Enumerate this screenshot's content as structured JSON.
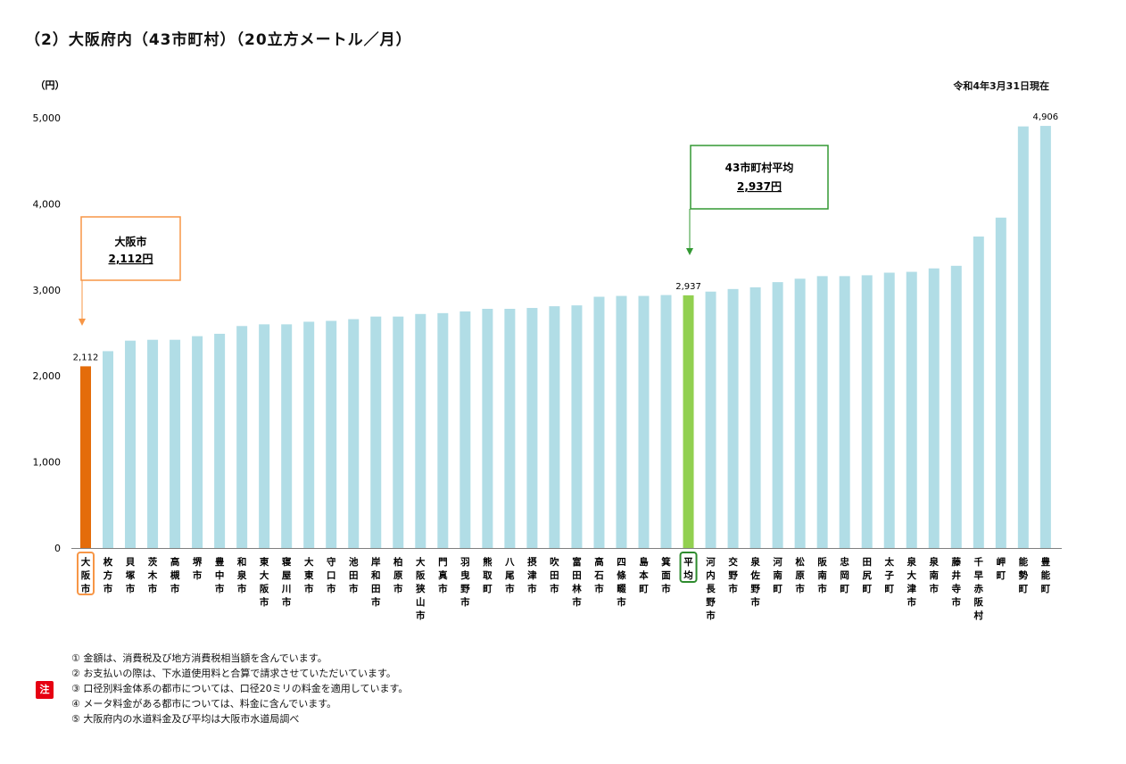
{
  "title": "（2）大阪府内（43市町村）（20立方メートル／月）",
  "as_of": "令和4年3月31日現在",
  "notes_badge": "注",
  "notes": [
    "① 金額は、消費税及び地方消費税相当額を含んでいます。",
    "② お支払いの際は、下水道使用料と合算で請求させていただいています。",
    "③ 口径別料金体系の都市については、口径20ミリの料金を適用しています。",
    "④ メータ料金がある都市については、料金に含んでいます。",
    "⑤ 大阪府内の水道料金及び平均は大阪市水道局調べ"
  ],
  "callouts": {
    "osaka": {
      "line1": "大阪市",
      "line2": "2,112円"
    },
    "average": {
      "line1": "43市町村平均",
      "line2": "2,937円"
    }
  },
  "colors": {
    "bar": "#b1dde6",
    "osaka": "#e46c0a",
    "average": "#92d050",
    "osaka_box": "#f79646",
    "average_box": "#339933",
    "average_label_box": "#2e8b2e",
    "axis": "#7f7f7f",
    "badge": "#e60012"
  },
  "chart_data": {
    "type": "bar",
    "ylabel": "（円）",
    "ylim": [
      0,
      5000
    ],
    "yticks": [
      "0",
      "1,000",
      "2,000",
      "3,000",
      "4,000",
      "5,000"
    ],
    "grid": false,
    "categories": [
      "大阪市",
      "枚方市",
      "貝塚市",
      "茨木市",
      "高槻市",
      "堺市",
      "豊中市",
      "和泉市",
      "東大阪市",
      "寝屋川市",
      "大東市",
      "守口市",
      "池田市",
      "岸和田市",
      "柏原市",
      "大阪狭山市",
      "門真市",
      "羽曳野市",
      "熊取町",
      "八尾市",
      "摂津市",
      "吹田市",
      "富田林市",
      "高石市",
      "四條畷市",
      "島本町",
      "箕面市",
      "平均",
      "河内長野市",
      "交野市",
      "泉佐野市",
      "河南町",
      "松原市",
      "阪南市",
      "忠岡町",
      "田尻町",
      "太子町",
      "泉大津市",
      "泉南市",
      "藤井寺市",
      "千早赤阪村",
      "岬町",
      "能勢町",
      "豊能町"
    ],
    "values": [
      2112,
      2288,
      2410,
      2420,
      2420,
      2462,
      2490,
      2580,
      2600,
      2600,
      2630,
      2640,
      2660,
      2690,
      2690,
      2720,
      2730,
      2750,
      2780,
      2780,
      2790,
      2810,
      2820,
      2920,
      2930,
      2930,
      2940,
      2937,
      2980,
      3010,
      3030,
      3090,
      3130,
      3160,
      3160,
      3170,
      3200,
      3210,
      3250,
      3280,
      3620,
      3840,
      4900,
      4906
    ],
    "highlight": {
      "osaka": 0,
      "average": 27
    },
    "data_labels": [
      {
        "index": 0,
        "text": "2,112"
      },
      {
        "index": 27,
        "text": "2,937"
      },
      {
        "index": 43,
        "text": "4,906"
      }
    ]
  }
}
